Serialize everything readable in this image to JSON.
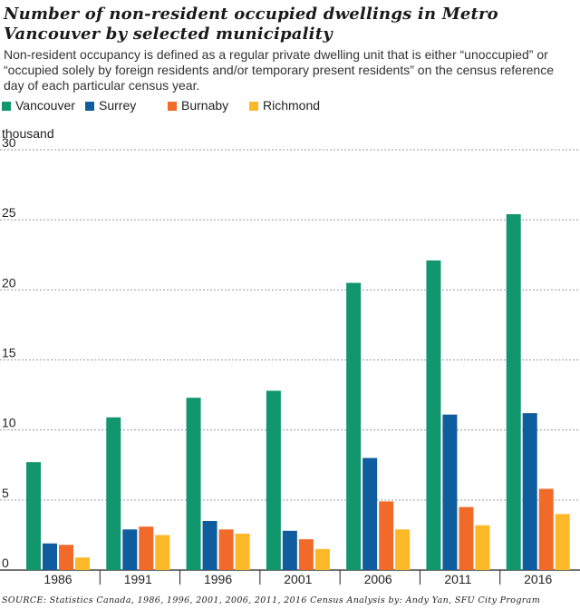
{
  "chart_data": {
    "type": "bar",
    "title": "Number of non-resident occupied dwellings in Metro Vancouver by selected municipality",
    "subtitle": "Non-resident occupancy is defined as a regular private dwelling unit that is either “unoccupied” or “occupied solely by foreign residents and/or temporary present residents” on the census reference day of each particular census year.",
    "ylabel": "thousand",
    "xlabel": "",
    "ylim": [
      0,
      30
    ],
    "yticks": [
      0,
      5,
      10,
      15,
      20,
      25,
      30
    ],
    "grid": true,
    "legend_position": "top-left",
    "categories": [
      "1986",
      "1991",
      "1996",
      "2001",
      "2006",
      "2011",
      "2016"
    ],
    "series": [
      {
        "name": "Vancouver",
        "color": "#12966e",
        "values": [
          7.7,
          10.9,
          12.3,
          12.8,
          20.5,
          22.1,
          25.4
        ]
      },
      {
        "name": "Surrey",
        "color": "#0f5c9e",
        "values": [
          1.9,
          2.9,
          3.5,
          2.8,
          8.0,
          11.1,
          11.2
        ]
      },
      {
        "name": "Burnaby",
        "color": "#f26a2a",
        "values": [
          1.8,
          3.1,
          2.9,
          2.2,
          4.9,
          4.5,
          5.8
        ]
      },
      {
        "name": "Richmond",
        "color": "#fdb827",
        "values": [
          0.9,
          2.5,
          2.6,
          1.5,
          2.9,
          3.2,
          4.0
        ]
      }
    ]
  },
  "source": "SOURCE: Statistics Canada, 1986, 1996, 2001, 2006, 2011, 2016 Census Analysis by: Andy Yan, SFU City Program"
}
